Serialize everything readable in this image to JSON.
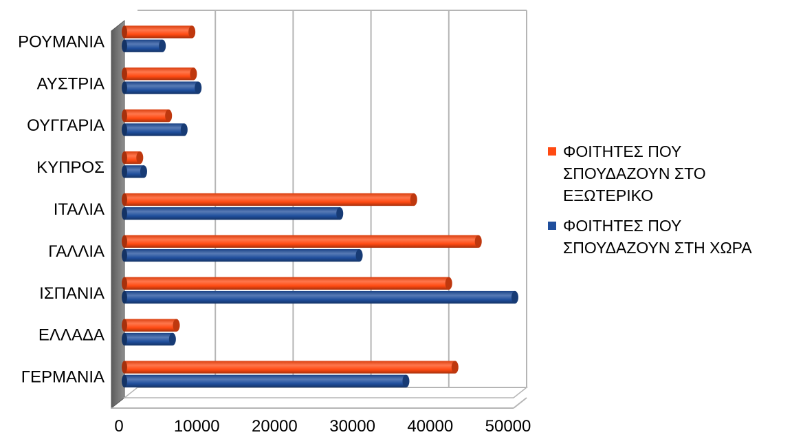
{
  "chart_data": {
    "type": "bar",
    "orientation": "horizontal",
    "style": "3d-cylinder",
    "categories": [
      "ΓΕΡΜΑΝΙΑ",
      "ΕΛΛΑΔΑ",
      "ΙΣΠΑΝΙΑ",
      "ΓΑΛΛΙΑ",
      "ΙΤΑΛΙΑ",
      "ΚΥΠΡΟΣ",
      "ΟΥΓΓΑΡΙΑ",
      "ΑΥΣΤΡΙΑ",
      "ΡΟΥΜΑΝΙΑ"
    ],
    "series": [
      {
        "name": "ΦΟΙΤΗΤΕΣ ΠΟΥ ΣΠΟΥΔΑΖΟΥΝ ΣΤΗ ΧΩΡΑ",
        "legend_lines": [
          "ΦΟΙΤΗΤΕΣ ΠΟΥ",
          "ΣΠΟΥΔΑΖΟΥΝ ΣΤΗ ΧΩΡΑ"
        ],
        "color": "#1F4E9C",
        "values": [
          35500,
          5500,
          49500,
          29500,
          27000,
          1800,
          7000,
          8800,
          4200
        ]
      },
      {
        "name": "ΦΟΙΤΗΤΕΣ ΠΟΥ ΣΠΟΥΔΑΖΟΥΝ ΣΤΟ ΕΞΩΤΕΡΙΚΟ",
        "legend_lines": [
          "ΦΟΙΤΗΤΕΣ ΠΟΥ",
          "ΣΠΟΥΔΑΖΟΥΝ ΣΤΟ",
          "ΕΞΩΤΕΡΙΚΟ"
        ],
        "color": "#FF4A12",
        "values": [
          41800,
          6000,
          41000,
          44800,
          36500,
          1300,
          5000,
          8200,
          8000
        ]
      }
    ],
    "xlim": [
      0,
      50000
    ],
    "xticks": [
      "0",
      "10000",
      "20000",
      "30000",
      "40000",
      "50000"
    ],
    "title": "",
    "xlabel": "",
    "ylabel": "",
    "grid": true,
    "legend_position": "right",
    "legend_order": [
      1,
      0
    ]
  }
}
